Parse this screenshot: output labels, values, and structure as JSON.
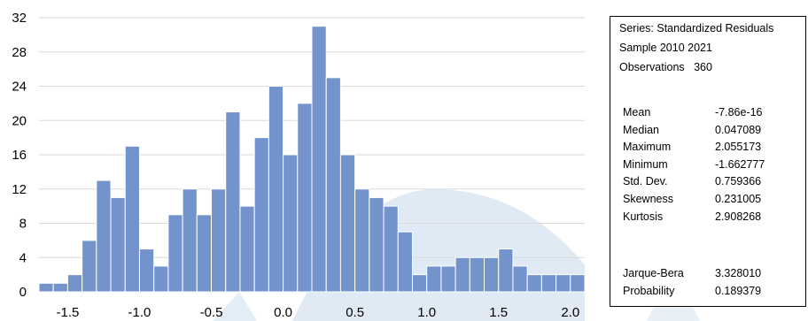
{
  "colors": {
    "bar": "#7393cc",
    "bar_stroke": "#ffffff",
    "grid": "#d9d9d9",
    "text": "#000000",
    "watermark": "#d7e5f1"
  },
  "chart_data": {
    "type": "bar",
    "title": "",
    "xlabel": "",
    "ylabel": "",
    "bin_start": -1.7,
    "bin_width": 0.1,
    "values": [
      1,
      1,
      2,
      6,
      13,
      11,
      17,
      5,
      3,
      9,
      12,
      9,
      12,
      21,
      10,
      18,
      24,
      16,
      22,
      31,
      25,
      16,
      12,
      11,
      10,
      7,
      2,
      3,
      3,
      4,
      4,
      4,
      5,
      3,
      2,
      2,
      2,
      2
    ],
    "xlim": [
      -1.7,
      2.1
    ],
    "ylim": [
      0,
      32
    ],
    "x_ticks": [
      -1.5,
      -1.0,
      -0.5,
      0.0,
      0.5,
      1.0,
      1.5,
      2.0
    ],
    "x_tick_labels": [
      "-1.5",
      "-1.0",
      "-0.5",
      "0.0",
      "0.5",
      "1.0",
      "1.5",
      "2.0"
    ],
    "y_ticks": [
      0,
      4,
      8,
      12,
      16,
      20,
      24,
      28,
      32
    ],
    "y_tick_labels": [
      "0",
      "4",
      "8",
      "12",
      "16",
      "20",
      "24",
      "28",
      "32"
    ],
    "grid": true,
    "legend": "none"
  },
  "stats": {
    "series_line": "Series: Standardized Residuals",
    "sample_line": "Sample 2010 2021",
    "observations_label": "Observations",
    "observations_value": "360",
    "rows": [
      {
        "label": "Mean",
        "value": "-7.86e-16"
      },
      {
        "label": "Median",
        "value": "0.047089"
      },
      {
        "label": "Maximum",
        "value": "2.055173"
      },
      {
        "label": "Minimum",
        "value": "-1.662777"
      },
      {
        "label": "Std. Dev.",
        "value": "0.759366"
      },
      {
        "label": "Skewness",
        "value": "0.231005"
      },
      {
        "label": "Kurtosis",
        "value": "2.908268"
      }
    ],
    "test_rows": [
      {
        "label": "Jarque-Bera",
        "value": "3.328010"
      },
      {
        "label": "Probability",
        "value": "0.189379"
      }
    ]
  }
}
